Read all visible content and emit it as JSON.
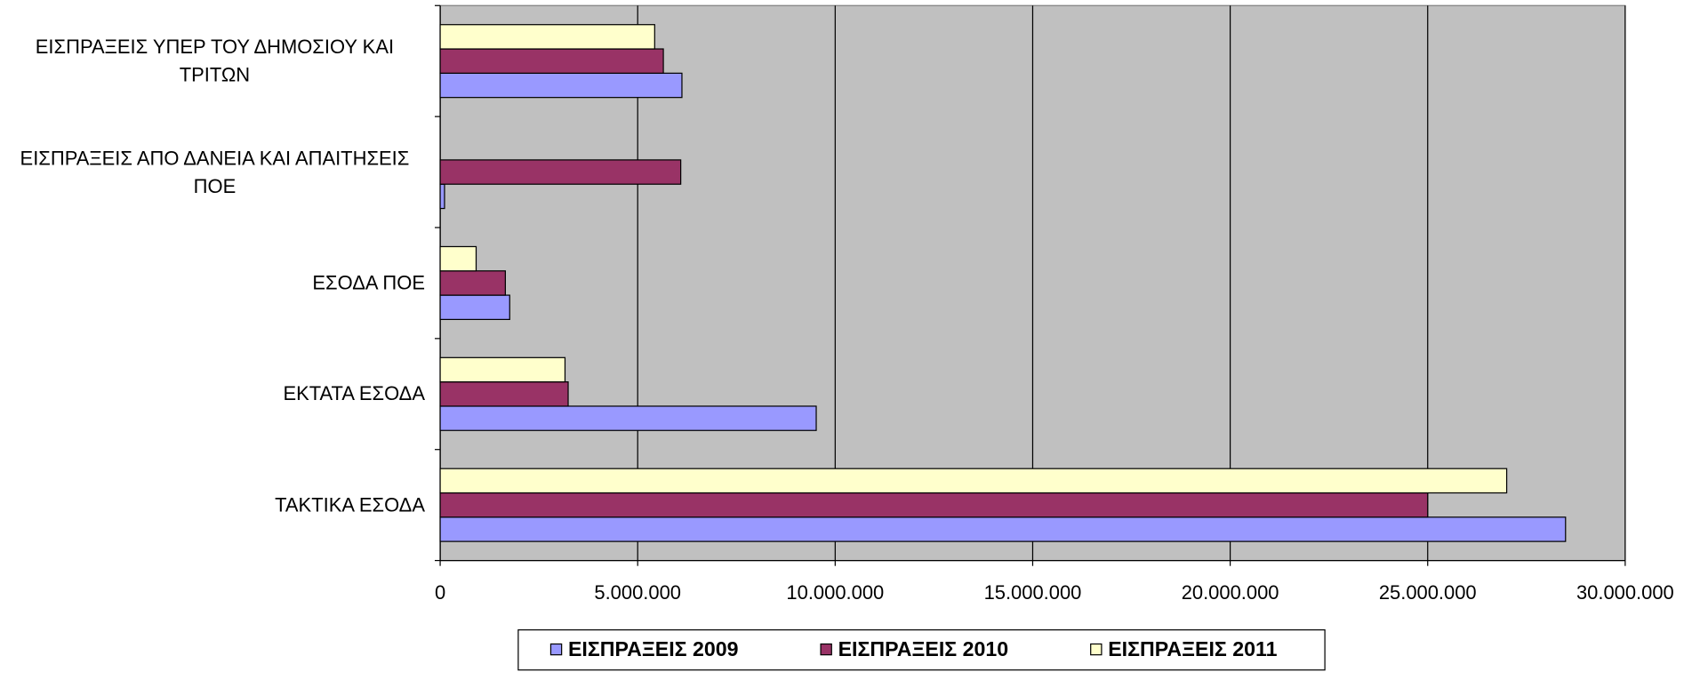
{
  "chart_data": {
    "type": "bar",
    "orientation": "horizontal",
    "categories": [
      "ΤΑΚΤΙΚΑ ΕΣΟΔΑ",
      "ΕΚΤΑΤΑ ΕΣΟΔΑ",
      "ΕΣΟΔΑ ΠΟΕ",
      "ΕΙΣΠΡΑΞΕΙΣ ΑΠΟ ΔΑΝΕΙΑ ΚΑΙ ΑΠΑΙΤΗΣΕΙΣ ΠΟΕ",
      "ΕΙΣΠΡΑΞΕΙΣ ΥΠΕΡ ΤΟΥ ΔΗΜΟΣΙΟΥ ΚΑΙ ΤΡΙΤΩΝ"
    ],
    "series": [
      {
        "name": "ΕΙΣΠΡΑΞΕΙΣ 2009",
        "color": "#9999ff",
        "values": [
          28490000,
          9520000,
          1760000,
          110000,
          6120000
        ]
      },
      {
        "name": "ΕΙΣΠΡΑΞΕΙΣ 2010",
        "color": "#993366",
        "values": [
          25000000,
          3240000,
          1650000,
          6090000,
          5650000
        ]
      },
      {
        "name": "ΕΙΣΠΡΑΞΕΙΣ 2011",
        "color": "#ffffcc",
        "values": [
          27000000,
          3160000,
          910000,
          null,
          5430000
        ]
      }
    ],
    "xlim": [
      0,
      30000000
    ],
    "xticks": [
      0,
      {
        "value": 5000000,
        "label": "5.000.000"
      },
      {
        "value": 10000000,
        "label": "10.000.000"
      },
      {
        "value": 15000000,
        "label": "15.000.000"
      },
      {
        "value": 20000000,
        "label": "20.000.000"
      },
      {
        "value": 25000000,
        "label": "25.000.000"
      },
      {
        "value": 30000000,
        "label": "30.000.000"
      }
    ],
    "grid": true,
    "legend": "bottom",
    "plot_background": "#c0c0c0"
  }
}
